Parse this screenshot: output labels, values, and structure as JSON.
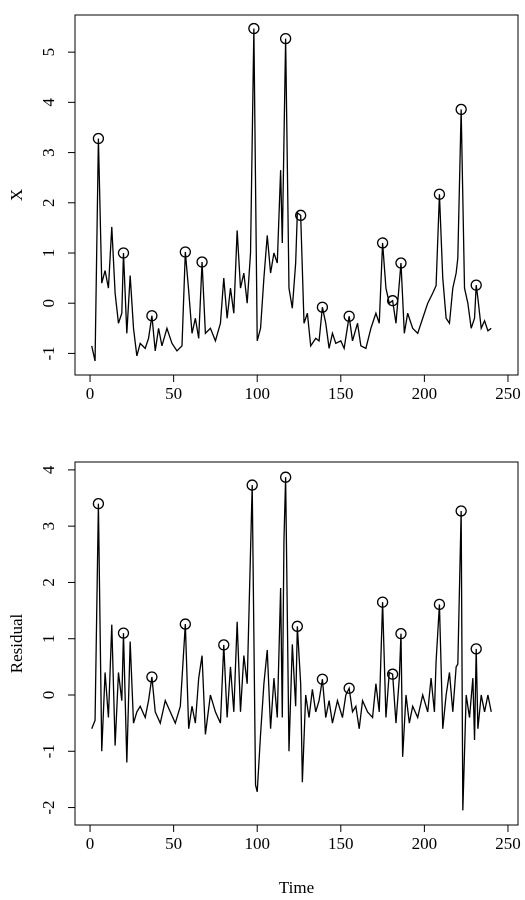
{
  "chart_data": [
    {
      "type": "line",
      "ylabel": "X",
      "color": "#000000",
      "xlim": [
        -9,
        256
      ],
      "ylim": [
        -1.43,
        5.74
      ],
      "xticks": [
        0,
        50,
        100,
        150,
        200,
        250
      ],
      "yticks": [
        -1,
        0,
        1,
        2,
        3,
        4,
        5
      ],
      "x": [
        1,
        3,
        5,
        7,
        9,
        11,
        13,
        15,
        17,
        19,
        20,
        22,
        24,
        26,
        28,
        30,
        33,
        35,
        37,
        39,
        41,
        43,
        46,
        49,
        52,
        55,
        57,
        59,
        61,
        63,
        65,
        67,
        69,
        72,
        75,
        78,
        80,
        82,
        84,
        86,
        88,
        90,
        92,
        94,
        96,
        98,
        100,
        102,
        104,
        106,
        108,
        110,
        112,
        114,
        115,
        116,
        117,
        119,
        121,
        123,
        124,
        126,
        128,
        130,
        132,
        135,
        137,
        139,
        141,
        143,
        145,
        147,
        150,
        152,
        155,
        157,
        160,
        162,
        165,
        168,
        171,
        173,
        175,
        177,
        179,
        181,
        183,
        186,
        188,
        190,
        193,
        196,
        199,
        202,
        205,
        207,
        209,
        211,
        213,
        215,
        217,
        219,
        220,
        222,
        224,
        226,
        228,
        230,
        231,
        232,
        234,
        236,
        238,
        240
      ],
      "values": [
        -0.85,
        -1.15,
        3.28,
        0.4,
        0.65,
        0.3,
        1.52,
        0.2,
        -0.4,
        -0.2,
        1.0,
        -0.6,
        0.55,
        -0.5,
        -1.05,
        -0.8,
        -0.9,
        -0.7,
        -0.25,
        -0.95,
        -0.5,
        -0.85,
        -0.5,
        -0.8,
        -0.95,
        -0.85,
        1.02,
        0.25,
        -0.6,
        -0.3,
        -0.7,
        0.82,
        -0.6,
        -0.5,
        -0.75,
        -0.4,
        0.5,
        -0.3,
        0.3,
        -0.2,
        1.45,
        0.3,
        0.6,
        0.0,
        1.0,
        5.47,
        -0.75,
        -0.5,
        0.5,
        1.35,
        0.6,
        1.0,
        0.8,
        2.65,
        1.2,
        3.25,
        5.27,
        0.3,
        -0.1,
        0.8,
        1.8,
        1.75,
        -0.4,
        -0.2,
        -0.85,
        -0.7,
        -0.75,
        -0.08,
        -0.4,
        -0.9,
        -0.6,
        -0.8,
        -0.75,
        -0.9,
        -0.26,
        -0.75,
        -0.4,
        -0.85,
        -0.9,
        -0.5,
        -0.2,
        -0.4,
        1.2,
        0.3,
        0.0,
        0.05,
        -0.4,
        0.8,
        -0.6,
        -0.2,
        -0.5,
        -0.6,
        -0.3,
        0.0,
        0.2,
        0.35,
        2.17,
        0.5,
        -0.3,
        -0.4,
        0.3,
        0.6,
        0.9,
        3.86,
        0.3,
        0.0,
        -0.5,
        -0.3,
        0.36,
        0.1,
        -0.5,
        -0.35,
        -0.55,
        -0.5
      ],
      "points_x": [
        5,
        20,
        37,
        57,
        67,
        98,
        117,
        126,
        139,
        155,
        175,
        181,
        186,
        209,
        222,
        231
      ],
      "points_values": [
        3.28,
        1.0,
        -0.25,
        1.02,
        0.82,
        5.47,
        5.27,
        1.75,
        -0.08,
        -0.26,
        1.2,
        0.05,
        0.8,
        2.17,
        3.86,
        0.36
      ]
    },
    {
      "type": "line",
      "ylabel": "Residual",
      "xlabel": "Time",
      "color": "#000000",
      "xlim": [
        -9,
        256
      ],
      "ylim": [
        -2.31,
        4.14
      ],
      "xticks": [
        0,
        50,
        100,
        150,
        200,
        250
      ],
      "yticks": [
        -2,
        -1,
        0,
        1,
        2,
        3,
        4
      ],
      "x": [
        1,
        3,
        5,
        7,
        9,
        11,
        13,
        15,
        17,
        19,
        20,
        22,
        24,
        26,
        28,
        30,
        33,
        35,
        37,
        39,
        42,
        45,
        48,
        51,
        54,
        57,
        59,
        61,
        63,
        65,
        67,
        69,
        72,
        75,
        78,
        80,
        82,
        84,
        86,
        88,
        90,
        92,
        94,
        97,
        99,
        100,
        102,
        104,
        106,
        108,
        110,
        112,
        114,
        115,
        116,
        117,
        119,
        121,
        123,
        124,
        126,
        127,
        129,
        131,
        133,
        135,
        137,
        139,
        141,
        143,
        145,
        148,
        151,
        153,
        155,
        157,
        159,
        161,
        163,
        166,
        169,
        171,
        173,
        175,
        177,
        179,
        181,
        183,
        185,
        186,
        187,
        189,
        191,
        193,
        196,
        199,
        202,
        204,
        206,
        207,
        209,
        211,
        213,
        215,
        217,
        219,
        220,
        222,
        223,
        225,
        227,
        229,
        230,
        231,
        232,
        234,
        236,
        238,
        240
      ],
      "values": [
        -0.6,
        -0.45,
        3.4,
        -1.0,
        0.4,
        -0.4,
        1.25,
        -0.9,
        0.4,
        -0.1,
        1.1,
        -1.2,
        0.95,
        -0.5,
        -0.3,
        -0.2,
        -0.4,
        -0.1,
        0.32,
        -0.3,
        -0.5,
        -0.1,
        -0.3,
        -0.5,
        -0.2,
        1.26,
        -0.6,
        -0.2,
        -0.5,
        0.3,
        0.7,
        -0.7,
        0.0,
        -0.3,
        -0.5,
        0.89,
        -0.4,
        0.5,
        -0.3,
        1.3,
        -0.3,
        0.7,
        0.2,
        3.73,
        -1.6,
        -1.72,
        -0.7,
        0.2,
        0.8,
        -0.6,
        0.3,
        -0.4,
        1.9,
        -0.4,
        2.75,
        3.87,
        -1.0,
        0.9,
        -0.2,
        1.22,
        0.2,
        -1.55,
        0.0,
        -0.4,
        0.1,
        -0.3,
        -0.1,
        0.28,
        -0.4,
        -0.1,
        -0.5,
        -0.1,
        -0.4,
        0.0,
        0.12,
        -0.3,
        -0.2,
        -0.6,
        -0.1,
        -0.3,
        -0.4,
        0.2,
        -0.3,
        1.65,
        -0.4,
        0.4,
        0.37,
        -0.5,
        0.3,
        1.09,
        -1.1,
        0.0,
        -0.5,
        -0.2,
        -0.4,
        0.0,
        -0.3,
        0.3,
        -0.3,
        0.6,
        1.61,
        -0.6,
        0.0,
        0.4,
        -0.3,
        0.5,
        0.55,
        3.27,
        -2.05,
        0.0,
        -0.4,
        0.3,
        -0.8,
        0.82,
        -0.6,
        0.0,
        -0.3,
        0.0,
        -0.3
      ],
      "points_x": [
        5,
        20,
        37,
        57,
        80,
        97,
        117,
        124,
        139,
        155,
        175,
        181,
        186,
        209,
        222,
        231
      ],
      "points_values": [
        3.4,
        1.1,
        0.32,
        1.26,
        0.89,
        3.73,
        3.87,
        1.22,
        0.28,
        0.12,
        1.65,
        0.37,
        1.09,
        1.61,
        3.27,
        0.82
      ]
    }
  ]
}
